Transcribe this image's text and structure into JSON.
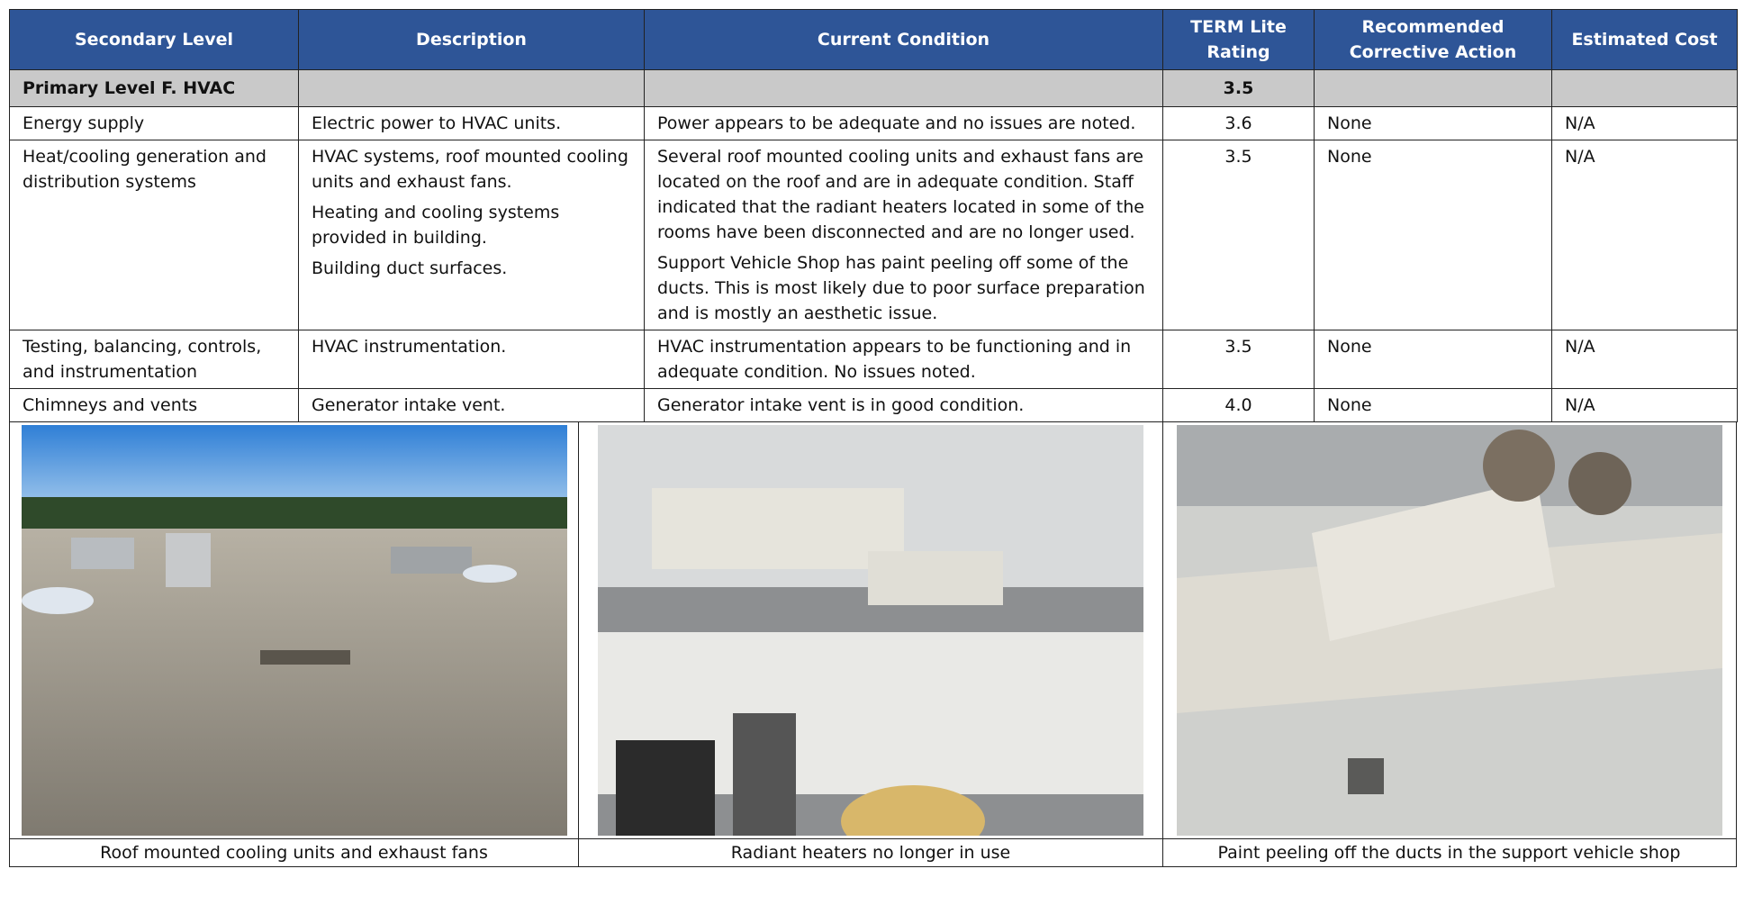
{
  "table": {
    "header": [
      "Secondary Level",
      "Description",
      "Current Condition",
      "TERM Lite Rating",
      "Recommended Corrective Action",
      "Estimated Cost"
    ],
    "primary": {
      "label": "Primary Level F. HVAC",
      "rating": "3.5"
    },
    "rows": [
      {
        "secondary": "Energy supply",
        "description": [
          "Electric power to HVAC units."
        ],
        "condition": [
          "Power appears to be adequate and no issues are noted."
        ],
        "rating": "3.6",
        "action": "None",
        "cost": "N/A"
      },
      {
        "secondary": "Heat/cooling generation and distribution systems",
        "description": [
          "HVAC systems, roof mounted cooling units and exhaust fans.",
          "Heating and cooling systems provided in building.",
          "Building duct surfaces."
        ],
        "condition": [
          "Several roof mounted cooling units and exhaust fans are located on the roof and are in adequate condition. Staff indicated that the radiant heaters located in some of the rooms have been disconnected and are no longer used.",
          "Support Vehicle Shop has paint peeling off some of the ducts. This is most likely due to poor surface preparation and is mostly an aesthetic issue."
        ],
        "rating": "3.5",
        "action": "None",
        "cost": "N/A"
      },
      {
        "secondary": "Testing, balancing, controls, and instrumentation",
        "description": [
          "HVAC instrumentation."
        ],
        "condition": [
          "HVAC instrumentation appears to be functioning and in adequate condition. No issues noted."
        ],
        "rating": "3.5",
        "action": "None",
        "cost": "N/A"
      },
      {
        "secondary": "Chimneys and vents",
        "description": [
          "Generator intake vent."
        ],
        "condition": [
          "Generator intake vent is in good condition."
        ],
        "rating": "4.0",
        "action": "None",
        "cost": "N/A"
      }
    ]
  },
  "photos": {
    "captions": [
      "Roof mounted cooling units and exhaust fans",
      "Radiant heaters no longer in use",
      "Paint peeling off the ducts in the support vehicle shop"
    ]
  }
}
